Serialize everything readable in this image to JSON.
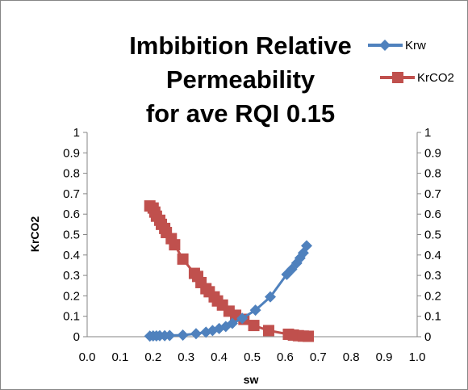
{
  "chart_data": {
    "type": "scatter",
    "title_lines": [
      "Imbibition Relative",
      "Permeability",
      "for ave RQI 0.15"
    ],
    "xlabel": "sw",
    "ylabel": "KrCO2",
    "xlim": [
      0.0,
      1.0
    ],
    "ylim": [
      0,
      1
    ],
    "x_ticks": [
      "0.0",
      "0.1",
      "0.2",
      "0.3",
      "0.4",
      "0.5",
      "0.6",
      "0.7",
      "0.8",
      "0.9",
      "1.0"
    ],
    "y_ticks_left": [
      "0",
      "0.1",
      "0.2",
      "0.3",
      "0.4",
      "0.5",
      "0.6",
      "0.7",
      "0.8",
      "0.9",
      "1"
    ],
    "y_ticks_right": [
      "0",
      "0.1",
      "0.2",
      "0.3",
      "0.4",
      "0.5",
      "0.6",
      "0.7",
      "0.8",
      "0.9",
      "1"
    ],
    "grid": false,
    "legend_position": "top-right",
    "series": [
      {
        "name": "Krw",
        "color": "#4F81BD",
        "marker": "diamond",
        "axis": "left",
        "points": [
          [
            0.19,
            0.003
          ],
          [
            0.2,
            0.004
          ],
          [
            0.21,
            0.004
          ],
          [
            0.22,
            0.005
          ],
          [
            0.235,
            0.005
          ],
          [
            0.25,
            0.006
          ],
          [
            0.29,
            0.008
          ],
          [
            0.33,
            0.015
          ],
          [
            0.36,
            0.022
          ],
          [
            0.38,
            0.03
          ],
          [
            0.4,
            0.04
          ],
          [
            0.42,
            0.05
          ],
          [
            0.44,
            0.065
          ],
          [
            0.47,
            0.09
          ],
          [
            0.51,
            0.13
          ],
          [
            0.555,
            0.195
          ],
          [
            0.605,
            0.305
          ],
          [
            0.62,
            0.33
          ],
          [
            0.635,
            0.36
          ],
          [
            0.645,
            0.385
          ],
          [
            0.655,
            0.41
          ],
          [
            0.665,
            0.445
          ]
        ]
      },
      {
        "name": "KrCO2",
        "color": "#C0504D",
        "marker": "square",
        "axis": "right",
        "points": [
          [
            0.19,
            0.64
          ],
          [
            0.2,
            0.63
          ],
          [
            0.205,
            0.61
          ],
          [
            0.21,
            0.59
          ],
          [
            0.22,
            0.57
          ],
          [
            0.225,
            0.55
          ],
          [
            0.235,
            0.53
          ],
          [
            0.24,
            0.51
          ],
          [
            0.255,
            0.48
          ],
          [
            0.265,
            0.45
          ],
          [
            0.29,
            0.38
          ],
          [
            0.325,
            0.31
          ],
          [
            0.335,
            0.295
          ],
          [
            0.345,
            0.265
          ],
          [
            0.36,
            0.235
          ],
          [
            0.37,
            0.22
          ],
          [
            0.385,
            0.195
          ],
          [
            0.395,
            0.175
          ],
          [
            0.41,
            0.155
          ],
          [
            0.43,
            0.125
          ],
          [
            0.45,
            0.105
          ],
          [
            0.475,
            0.085
          ],
          [
            0.505,
            0.055
          ],
          [
            0.55,
            0.03
          ],
          [
            0.61,
            0.012
          ],
          [
            0.625,
            0.008
          ],
          [
            0.64,
            0.005
          ],
          [
            0.655,
            0.003
          ],
          [
            0.67,
            0.002
          ]
        ]
      }
    ]
  }
}
